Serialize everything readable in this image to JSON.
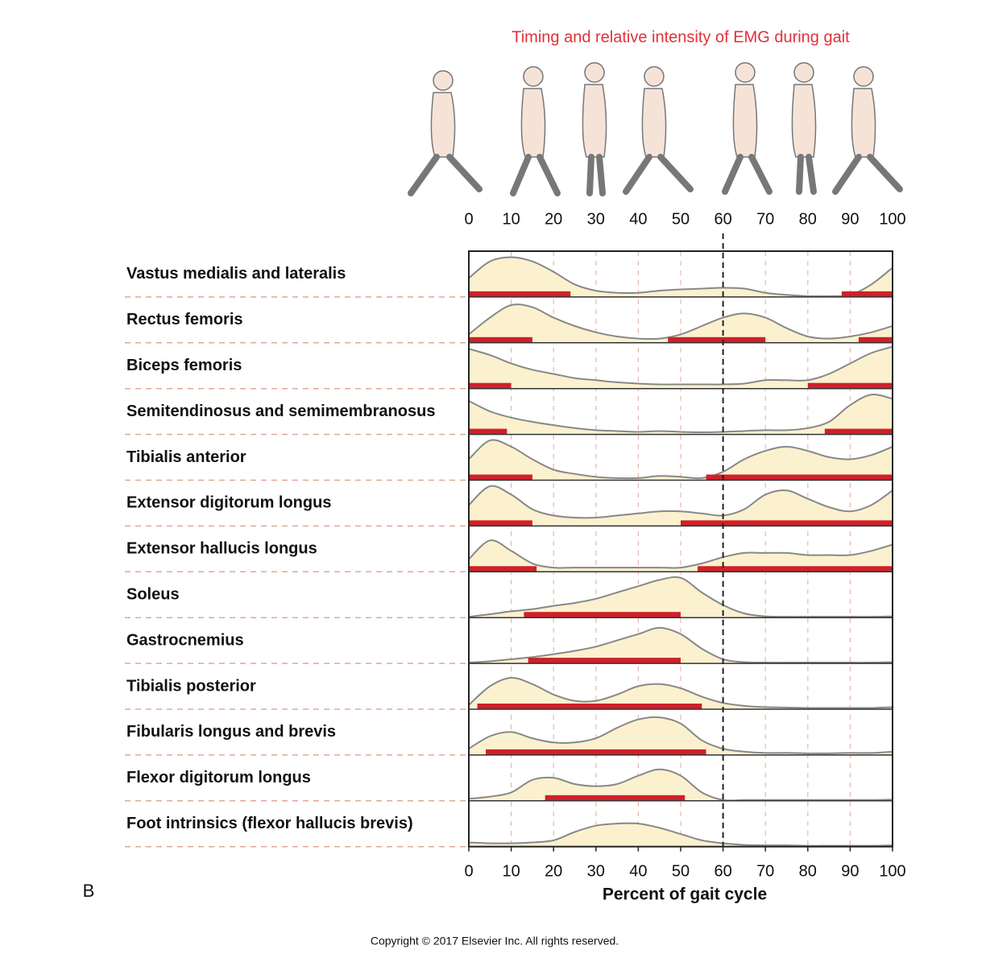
{
  "chart_data": {
    "type": "ridgeline",
    "title": "Timing and relative intensity of EMG during gait",
    "xlabel": "Percent of gait cycle",
    "panel": "B",
    "copyright": "Copyright © 2017 Elsevier Inc. All rights reserved.",
    "xlim": [
      0,
      100
    ],
    "xticks": [
      0,
      10,
      20,
      30,
      40,
      50,
      60,
      70,
      80,
      90,
      100
    ],
    "ref_line": 60,
    "grid": true,
    "curve_color": "#fbf1cf",
    "bar_color": "#d0202a",
    "x": [
      0,
      5,
      10,
      15,
      20,
      25,
      30,
      35,
      40,
      45,
      50,
      55,
      60,
      65,
      70,
      75,
      80,
      85,
      90,
      95,
      100
    ],
    "muscles": [
      {
        "name": "Vastus medialis and lateralis",
        "active": [
          [
            0,
            24
          ],
          [
            88,
            100
          ]
        ],
        "emg": [
          0.45,
          0.85,
          0.95,
          0.85,
          0.6,
          0.3,
          0.15,
          0.1,
          0.1,
          0.15,
          0.18,
          0.2,
          0.22,
          0.2,
          0.1,
          0.05,
          0.02,
          0.02,
          0.05,
          0.3,
          0.7
        ]
      },
      {
        "name": "Rectus femoris",
        "active": [
          [
            0,
            15
          ],
          [
            47,
            70
          ],
          [
            92,
            100
          ]
        ],
        "emg": [
          0.2,
          0.6,
          0.9,
          0.85,
          0.6,
          0.4,
          0.25,
          0.15,
          0.1,
          0.1,
          0.2,
          0.4,
          0.6,
          0.7,
          0.6,
          0.35,
          0.15,
          0.1,
          0.15,
          0.25,
          0.4
        ]
      },
      {
        "name": "Biceps femoris",
        "active": [
          [
            0,
            10
          ],
          [
            80,
            100
          ]
        ],
        "emg": [
          0.95,
          0.8,
          0.6,
          0.45,
          0.35,
          0.25,
          0.2,
          0.15,
          0.12,
          0.1,
          0.1,
          0.1,
          0.1,
          0.12,
          0.2,
          0.2,
          0.2,
          0.35,
          0.6,
          0.85,
          1.0
        ]
      },
      {
        "name": "Semitendinosus and semimembranosus",
        "active": [
          [
            0,
            9
          ],
          [
            84,
            100
          ]
        ],
        "emg": [
          0.8,
          0.55,
          0.4,
          0.3,
          0.22,
          0.15,
          0.1,
          0.08,
          0.06,
          0.08,
          0.06,
          0.05,
          0.06,
          0.08,
          0.1,
          0.1,
          0.15,
          0.3,
          0.7,
          0.95,
          0.85
        ]
      },
      {
        "name": "Tibialis anterior",
        "active": [
          [
            0,
            15
          ],
          [
            56,
            100
          ]
        ],
        "emg": [
          0.5,
          0.95,
          0.8,
          0.5,
          0.25,
          0.15,
          0.08,
          0.05,
          0.05,
          0.1,
          0.08,
          0.05,
          0.2,
          0.5,
          0.7,
          0.8,
          0.7,
          0.55,
          0.5,
          0.6,
          0.8
        ]
      },
      {
        "name": "Extensor digitorum longus",
        "active": [
          [
            0,
            15
          ],
          [
            50,
            100
          ]
        ],
        "emg": [
          0.5,
          0.95,
          0.75,
          0.4,
          0.25,
          0.2,
          0.2,
          0.25,
          0.3,
          0.35,
          0.35,
          0.3,
          0.25,
          0.4,
          0.75,
          0.85,
          0.65,
          0.45,
          0.35,
          0.5,
          0.85
        ]
      },
      {
        "name": "Extensor hallucis longus",
        "active": [
          [
            0,
            16
          ],
          [
            54,
            100
          ]
        ],
        "emg": [
          0.3,
          0.75,
          0.5,
          0.2,
          0.1,
          0.1,
          0.1,
          0.1,
          0.1,
          0.1,
          0.1,
          0.2,
          0.35,
          0.45,
          0.45,
          0.45,
          0.4,
          0.4,
          0.4,
          0.5,
          0.65
        ]
      },
      {
        "name": "Soleus",
        "active": [
          [
            13,
            50
          ]
        ],
        "emg": [
          0.02,
          0.08,
          0.15,
          0.2,
          0.28,
          0.35,
          0.45,
          0.6,
          0.75,
          0.9,
          0.95,
          0.6,
          0.3,
          0.1,
          0.03,
          0.02,
          0.02,
          0.02,
          0.02,
          0.02,
          0.03
        ]
      },
      {
        "name": "Gastrocnemius",
        "active": [
          [
            14,
            50
          ]
        ],
        "emg": [
          0.02,
          0.05,
          0.1,
          0.15,
          0.22,
          0.3,
          0.4,
          0.55,
          0.7,
          0.85,
          0.7,
          0.35,
          0.1,
          0.03,
          0.02,
          0.02,
          0.02,
          0.02,
          0.02,
          0.02,
          0.03
        ]
      },
      {
        "name": "Tibialis posterior",
        "active": [
          [
            2,
            55
          ]
        ],
        "emg": [
          0.1,
          0.55,
          0.75,
          0.6,
          0.35,
          0.2,
          0.2,
          0.35,
          0.55,
          0.6,
          0.5,
          0.3,
          0.15,
          0.08,
          0.05,
          0.04,
          0.03,
          0.03,
          0.03,
          0.03,
          0.05
        ]
      },
      {
        "name": "Fibularis longus and brevis",
        "active": [
          [
            4,
            56
          ]
        ],
        "emg": [
          0.15,
          0.45,
          0.55,
          0.4,
          0.3,
          0.3,
          0.4,
          0.65,
          0.85,
          0.9,
          0.75,
          0.35,
          0.15,
          0.08,
          0.05,
          0.05,
          0.04,
          0.04,
          0.05,
          0.05,
          0.08
        ]
      },
      {
        "name": "Flexor digitorum longus",
        "active": [
          [
            18,
            51
          ]
        ],
        "emg": [
          0.05,
          0.1,
          0.2,
          0.5,
          0.55,
          0.4,
          0.35,
          0.4,
          0.6,
          0.75,
          0.6,
          0.2,
          0.02,
          0.02,
          0.02,
          0.02,
          0.02,
          0.02,
          0.02,
          0.02,
          0.03
        ]
      },
      {
        "name": "Foot intrinsics (flexor hallucis brevis)",
        "active": [],
        "emg": [
          0.1,
          0.08,
          0.08,
          0.1,
          0.15,
          0.35,
          0.5,
          0.55,
          0.55,
          0.45,
          0.3,
          0.15,
          0.08,
          0.04,
          0.03,
          0.03,
          0.02,
          0.02,
          0.02,
          0.02,
          0.03
        ]
      }
    ]
  }
}
